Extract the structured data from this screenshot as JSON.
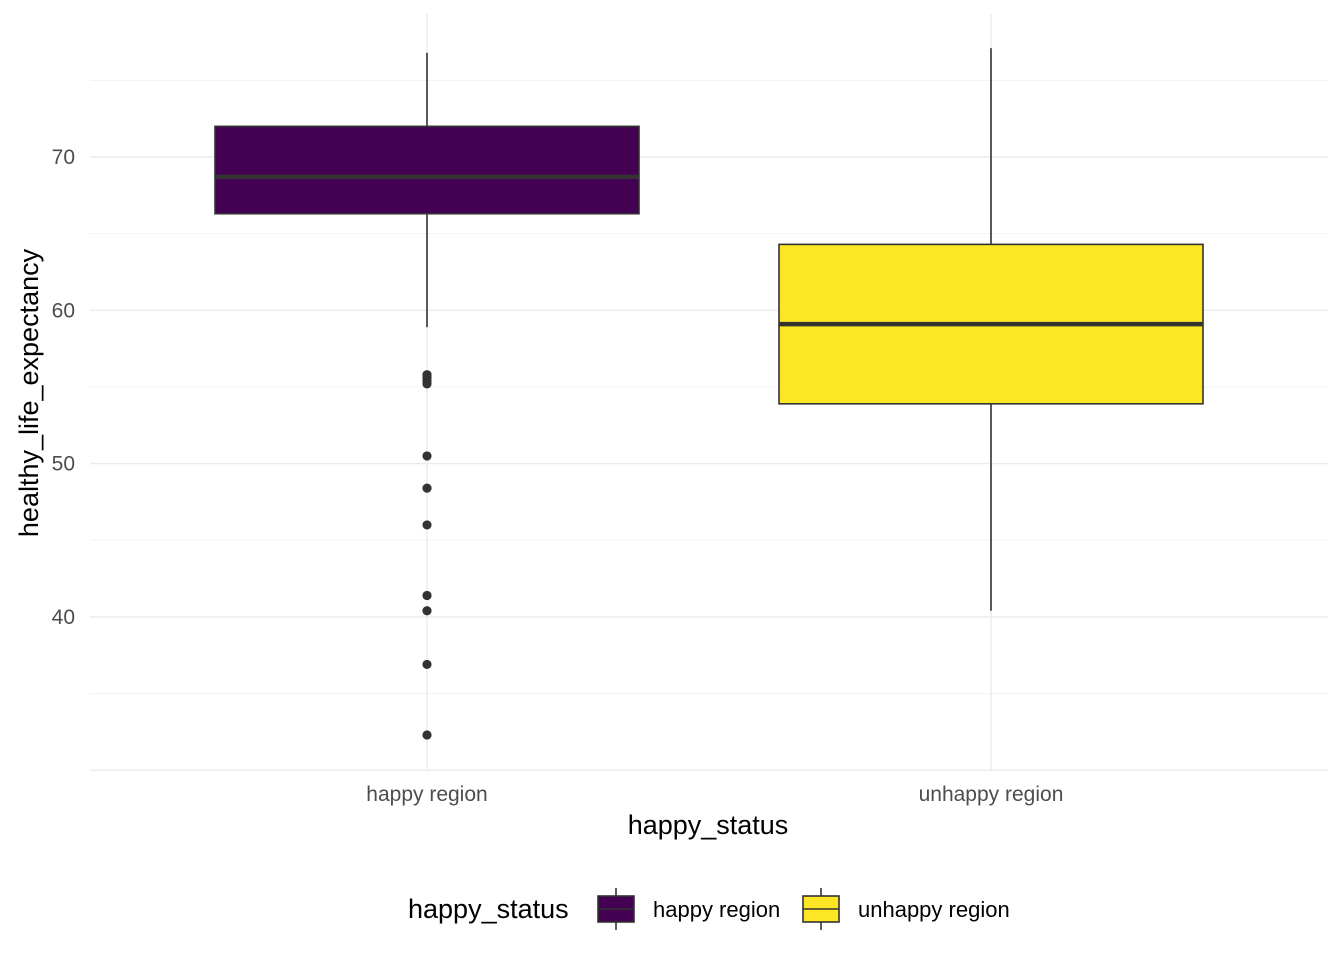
{
  "chart_data": {
    "type": "boxplot",
    "xlabel": "happy_status",
    "ylabel": "healthy_life_expectancy",
    "ylim": [
      30,
      78
    ],
    "yticks": [
      40,
      50,
      60,
      70
    ],
    "grid": true,
    "categories": [
      "happy region",
      "unhappy region"
    ],
    "boxes": [
      {
        "category": "happy region",
        "whisker_low": 58.9,
        "q1": 66.3,
        "median": 68.7,
        "q3": 72.0,
        "whisker_high": 76.8,
        "outliers": [
          55.8,
          55.6,
          55.4,
          55.2,
          50.5,
          48.4,
          46.0,
          41.4,
          40.4,
          36.9,
          32.3
        ],
        "color": "#440154"
      },
      {
        "category": "unhappy region",
        "whisker_low": 40.4,
        "q1": 53.9,
        "median": 59.1,
        "q3": 64.3,
        "whisker_high": 77.1,
        "outliers": [],
        "color": "#FDE725"
      }
    ],
    "legend": {
      "title": "happy_status",
      "position": "bottom",
      "items": [
        {
          "label": "happy region",
          "color": "#440154"
        },
        {
          "label": "unhappy region",
          "color": "#FDE725"
        }
      ]
    }
  }
}
